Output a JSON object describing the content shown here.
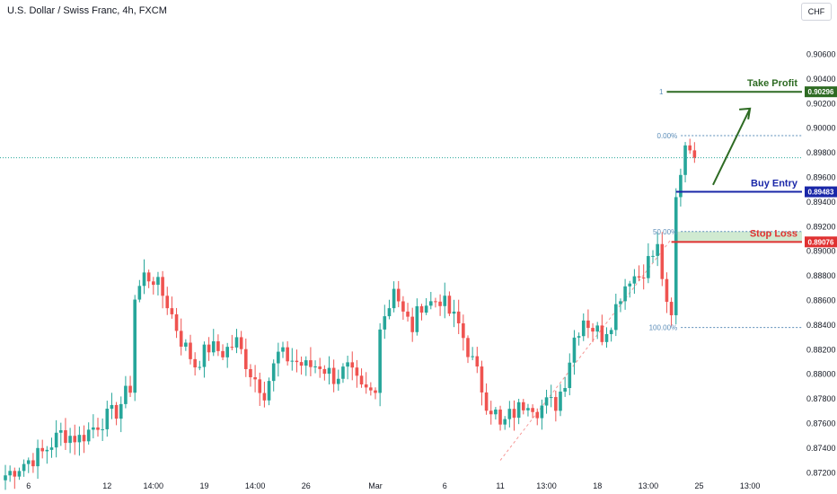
{
  "header": {
    "title": "U.S. Dollar / Swiss Franc, 4h, FXCM",
    "currency": "CHF"
  },
  "colors": {
    "up": "#26a69a",
    "down": "#ef5350",
    "take_profit": "#2e6b23",
    "buy_entry": "#1a27a8",
    "stop_loss": "#e03131",
    "fib": "#5b8db8",
    "last_price_line": "#26a69a"
  },
  "chart_data": {
    "type": "candlestick",
    "symbol": "USDCHF",
    "interval": "4h",
    "source": "FXCM",
    "currency": "CHF",
    "ylim": [
      0.871,
      0.9075
    ],
    "y_ticks": [
      "0.90600",
      "0.90400",
      "0.90200",
      "0.90000",
      "0.89800",
      "0.89600",
      "0.89400",
      "0.89200",
      "0.89000",
      "0.88800",
      "0.88600",
      "0.88400",
      "0.88200",
      "0.88000",
      "0.87800",
      "0.87600",
      "0.87400",
      "0.87200"
    ],
    "x_ticks": [
      "6",
      "12",
      "14:00",
      "19",
      "14:00",
      "26",
      "Mar",
      "6",
      "11",
      "13:00",
      "18",
      "13:00",
      "25",
      "13:00"
    ],
    "x_tick_index": [
      5,
      22,
      32,
      43,
      54,
      65,
      80,
      95,
      107,
      117,
      128,
      139,
      150,
      161
    ],
    "candle_count": 150,
    "anchors": [
      [
        0,
        0.8718
      ],
      [
        4,
        0.8728
      ],
      [
        8,
        0.8736
      ],
      [
        12,
        0.8752
      ],
      [
        16,
        0.8748
      ],
      [
        20,
        0.876
      ],
      [
        24,
        0.877
      ],
      [
        27,
        0.879
      ],
      [
        28,
        0.8862
      ],
      [
        30,
        0.888
      ],
      [
        32,
        0.8878
      ],
      [
        35,
        0.8858
      ],
      [
        38,
        0.8828
      ],
      [
        41,
        0.8808
      ],
      [
        44,
        0.8822
      ],
      [
        47,
        0.8818
      ],
      [
        50,
        0.8826
      ],
      [
        53,
        0.8802
      ],
      [
        56,
        0.8786
      ],
      [
        59,
        0.8816
      ],
      [
        62,
        0.8812
      ],
      [
        65,
        0.8806
      ],
      [
        68,
        0.8808
      ],
      [
        71,
        0.8798
      ],
      [
        74,
        0.8804
      ],
      [
        77,
        0.8786
      ],
      [
        80,
        0.8784
      ],
      [
        81,
        0.8844
      ],
      [
        83,
        0.8856
      ],
      [
        84,
        0.8874
      ],
      [
        86,
        0.8848
      ],
      [
        88,
        0.8838
      ],
      [
        90,
        0.8858
      ],
      [
        92,
        0.8858
      ],
      [
        94,
        0.8862
      ],
      [
        96,
        0.885
      ],
      [
        98,
        0.884
      ],
      [
        100,
        0.882
      ],
      [
        102,
        0.88
      ],
      [
        104,
        0.8778
      ],
      [
        106,
        0.8768
      ],
      [
        107,
        0.8756
      ],
      [
        109,
        0.8766
      ],
      [
        111,
        0.8772
      ],
      [
        113,
        0.878
      ],
      [
        115,
        0.8772
      ],
      [
        117,
        0.8776
      ],
      [
        119,
        0.8776
      ],
      [
        121,
        0.8796
      ],
      [
        123,
        0.883
      ],
      [
        125,
        0.8846
      ],
      [
        127,
        0.8838
      ],
      [
        129,
        0.8832
      ],
      [
        131,
        0.8844
      ],
      [
        133,
        0.8866
      ],
      [
        135,
        0.888
      ],
      [
        137,
        0.888
      ],
      [
        139,
        0.8892
      ],
      [
        141,
        0.8902
      ],
      [
        142,
        0.888
      ],
      [
        143,
        0.8852
      ],
      [
        144,
        0.8848
      ],
      [
        145,
        0.8944
      ],
      [
        146,
        0.8962
      ],
      [
        147,
        0.8986
      ],
      [
        148,
        0.8982
      ],
      [
        149,
        0.8976
      ]
    ],
    "levels": {
      "take_profit": {
        "label": "Take Profit",
        "value": 0.90296,
        "price_label": "0.90296",
        "fib_label": "1"
      },
      "buy_entry": {
        "label": "Buy Entry",
        "value": 0.89483,
        "price_label": "0.89483"
      },
      "stop_loss": {
        "label": "Stop Loss",
        "value": 0.89076,
        "price_label": "0.89076"
      }
    },
    "fib_levels": [
      {
        "label": "0.00%",
        "value": 0.8994
      },
      {
        "label": "50.00%",
        "value": 0.8916
      },
      {
        "label": "100.00%",
        "value": 0.8838
      }
    ],
    "last_price": 0.8976,
    "legend": "none",
    "grid": false
  }
}
